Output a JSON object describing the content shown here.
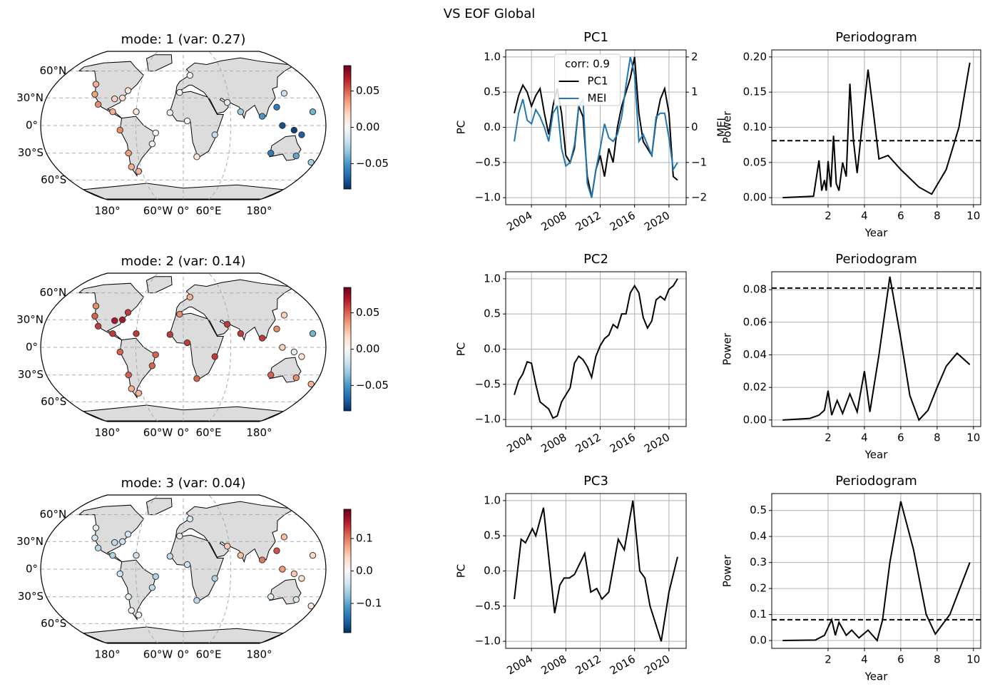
{
  "title": "VS EOF Global",
  "chart_data": [
    {
      "type": "map",
      "title": "mode: 1 (var: 0.27)",
      "lon": [
        -123,
        -118,
        -110,
        -90,
        -80,
        -72,
        -73,
        -65,
        -40,
        -35,
        -75,
        -80,
        -90,
        -60,
        -5,
        10,
        -17,
        5,
        18,
        40,
        57,
        73,
        100,
        120,
        125,
        140,
        150,
        115,
        150,
        175,
        165,
        135
      ],
      "lat": [
        45,
        34,
        23,
        15,
        -5,
        -30,
        -45,
        -50,
        -20,
        -8,
        38,
        30,
        29,
        15,
        36,
        55,
        14,
        5,
        -34,
        -10,
        25,
        15,
        10,
        20,
        0,
        -5,
        -10,
        -30,
        -33,
        -40,
        15,
        35
      ],
      "values": [
        0.03,
        0.035,
        0.04,
        0.03,
        0.04,
        0.035,
        0.03,
        0.03,
        0.005,
        0.0,
        0.01,
        0.015,
        0.02,
        0.01,
        0.0,
        -0.005,
        0.005,
        0.0,
        0.01,
        -0.02,
        -0.01,
        -0.03,
        -0.05,
        -0.06,
        -0.075,
        -0.08,
        -0.07,
        -0.06,
        -0.045,
        -0.03,
        -0.04,
        -0.02
      ],
      "vlim": [
        -0.085,
        0.085
      ],
      "cticks": [
        0.05,
        {
          "value": 0,
          "label": "0.00"
        },
        {
          "value": -0.05,
          "label": "−0.05"
        }
      ],
      "cmap": [
        "#053061",
        "#2166ac",
        "#4393c3",
        "#92c5de",
        "#d1e5f0",
        "#f7f7f7",
        "#fddbc7",
        "#f4a582",
        "#d6604d",
        "#b2182b",
        "#67001f"
      ],
      "yticks": [
        {
          "value": 60,
          "label": "60°N"
        },
        {
          "value": 30,
          "label": "30°N"
        },
        {
          "value": 0,
          "label": "0°"
        },
        {
          "value": -30,
          "label": "30°S"
        },
        {
          "value": -60,
          "label": "60°S"
        }
      ],
      "xticks": [
        {
          "value": -180,
          "label": "180°"
        },
        {
          "value": -60,
          "label": "60°W"
        },
        {
          "value": 0,
          "label": "0°"
        },
        {
          "value": 60,
          "label": "60°E"
        },
        {
          "value": 180,
          "label": "180°"
        }
      ],
      "grid": true
    },
    {
      "type": "line",
      "title": "PC1",
      "ylabel": "PC",
      "y2label": "MEI",
      "annotation": "corr: 0.9",
      "legend": "upper center",
      "x": [
        2002,
        2002.5,
        2003,
        2003.5,
        2004,
        2004.5,
        2005,
        2005.5,
        2006,
        2006.5,
        2007,
        2007.5,
        2008,
        2008.5,
        2009,
        2009.5,
        2010,
        2010.5,
        2011,
        2011.5,
        2012,
        2012.5,
        2013,
        2013.5,
        2014,
        2014.5,
        2015,
        2015.5,
        2016,
        2016.5,
        2017,
        2017.5,
        2018,
        2018.5,
        2019,
        2019.5,
        2020,
        2020.5,
        2021
      ],
      "series": [
        {
          "name": "PC1",
          "color": "#000000",
          "values": [
            0.2,
            0.45,
            0.6,
            0.5,
            0.3,
            0.45,
            0.55,
            0.2,
            -0.1,
            0.3,
            0.55,
            0.2,
            -0.4,
            -0.5,
            -0.3,
            0.3,
            0.15,
            -0.7,
            -1.0,
            -0.6,
            -0.4,
            -0.7,
            -0.3,
            -0.5,
            0.0,
            0.3,
            0.5,
            0.7,
            1.0,
            0.2,
            -0.2,
            -0.3,
            -0.4,
            0.1,
            0.4,
            0.55,
            0.2,
            -0.7,
            -0.75
          ]
        },
        {
          "name": "MEI",
          "color": "#1f77b4",
          "axis": "y2",
          "values": [
            -0.4,
            0.4,
            0.8,
            0.2,
            0.1,
            0.5,
            0.3,
            0.0,
            -0.4,
            0.4,
            0.6,
            -0.6,
            -1.1,
            -1.0,
            -0.5,
            0.6,
            0.8,
            -1.6,
            -2.0,
            -1.2,
            -0.6,
            0.1,
            -0.3,
            -0.4,
            -0.2,
            0.3,
            1.2,
            2.0,
            1.5,
            -0.4,
            -0.2,
            -0.5,
            -0.8,
            0.3,
            0.4,
            0.4,
            -0.3,
            -1.2,
            -1.0
          ]
        }
      ],
      "xlim": [
        2001,
        2022
      ],
      "xticks": [
        2004,
        2008,
        2012,
        2016,
        2020
      ],
      "xtick_rotation": 30,
      "ylim": [
        -1.1,
        1.1
      ],
      "yticks": [
        {
          "value": -1,
          "label": "−1.0"
        },
        {
          "value": -0.5,
          "label": "−0.5"
        },
        {
          "value": 0,
          "label": "0.0"
        },
        0.5,
        {
          "value": 1,
          "label": "1.0"
        }
      ],
      "y2lim": [
        -2.2,
        2.2
      ],
      "y2ticks": [
        {
          "value": -2,
          "label": "−2"
        },
        {
          "value": -1,
          "label": "−1"
        },
        0,
        1,
        2
      ],
      "grid": true
    },
    {
      "type": "line",
      "title": "Periodogram",
      "xlabel": "Year",
      "ylabel": "Power",
      "color": "#000000",
      "x": [
        -0.5,
        1.2,
        1.5,
        1.65,
        1.8,
        1.9,
        2.0,
        2.15,
        2.3,
        2.45,
        2.6,
        2.8,
        3.0,
        3.2,
        3.4,
        3.6,
        3.9,
        4.2,
        4.5,
        4.8,
        5.3,
        6.0,
        7.0,
        7.7,
        8.5,
        9.2,
        9.8
      ],
      "values": [
        0,
        0.002,
        0.053,
        0.01,
        0.025,
        0.01,
        0.052,
        0.015,
        0.088,
        0.02,
        0.01,
        0.05,
        0.03,
        0.162,
        0.08,
        0.035,
        0.11,
        0.182,
        0.12,
        0.055,
        0.06,
        0.04,
        0.015,
        0.005,
        0.04,
        0.1,
        0.192
      ],
      "hline": 0.081,
      "xlim": [
        -1.1,
        10.4
      ],
      "xticks": [
        2,
        4,
        6,
        8,
        10
      ],
      "ylim": [
        -0.01,
        0.21
      ],
      "yticks": [
        {
          "value": 0,
          "label": "0.00"
        },
        0.05,
        {
          "value": 0.1,
          "label": "0.10"
        },
        0.15,
        {
          "value": 0.2,
          "label": "0.20"
        }
      ],
      "grid": true
    },
    {
      "type": "map",
      "title": "mode: 2 (var: 0.14)",
      "lon": [
        -123,
        -118,
        -110,
        -90,
        -80,
        -72,
        -73,
        -65,
        -40,
        -35,
        -75,
        -80,
        -90,
        -60,
        -5,
        10,
        -17,
        5,
        18,
        40,
        57,
        73,
        100,
        120,
        125,
        140,
        150,
        115,
        150,
        175,
        165,
        135
      ],
      "lat": [
        45,
        34,
        23,
        15,
        -5,
        -30,
        -45,
        -50,
        -20,
        -8,
        38,
        30,
        29,
        15,
        36,
        55,
        14,
        5,
        -34,
        -10,
        25,
        15,
        10,
        20,
        0,
        -5,
        -10,
        -30,
        -33,
        -40,
        15,
        35
      ],
      "values": [
        0.04,
        0.05,
        0.06,
        0.06,
        0.05,
        0.05,
        0.03,
        0.03,
        0.05,
        0.05,
        0.06,
        0.07,
        0.07,
        0.06,
        0.04,
        0.03,
        0.06,
        0.06,
        0.05,
        0.06,
        0.06,
        0.06,
        0.06,
        0.04,
        0.02,
        -0.01,
        0.01,
        0.05,
        0.04,
        0.03,
        -0.04,
        0.02
      ],
      "vlim": [
        -0.085,
        0.085
      ],
      "cticks": [
        0.05,
        {
          "value": 0,
          "label": "0.00"
        },
        {
          "value": -0.05,
          "label": "−0.05"
        }
      ],
      "cmap": [
        "#053061",
        "#2166ac",
        "#4393c3",
        "#92c5de",
        "#d1e5f0",
        "#f7f7f7",
        "#fddbc7",
        "#f4a582",
        "#d6604d",
        "#b2182b",
        "#67001f"
      ],
      "yticks": [
        {
          "value": 60,
          "label": "60°N"
        },
        {
          "value": 30,
          "label": "30°N"
        },
        {
          "value": 0,
          "label": "0°"
        },
        {
          "value": -30,
          "label": "30°S"
        },
        {
          "value": -60,
          "label": "60°S"
        }
      ],
      "xticks": [
        {
          "value": -180,
          "label": "180°"
        },
        {
          "value": -60,
          "label": "60°W"
        },
        {
          "value": 0,
          "label": "0°"
        },
        {
          "value": 60,
          "label": "60°E"
        },
        {
          "value": 180,
          "label": "180°"
        }
      ],
      "grid": true
    },
    {
      "type": "line",
      "title": "PC2",
      "ylabel": "PC",
      "color": "#000000",
      "x": [
        2002,
        2002.5,
        2003,
        2003.5,
        2004,
        2004.5,
        2005,
        2005.5,
        2006,
        2006.5,
        2007,
        2007.5,
        2008,
        2008.5,
        2009,
        2009.5,
        2010,
        2010.5,
        2011,
        2011.5,
        2012,
        2012.5,
        2013,
        2013.5,
        2014,
        2014.5,
        2015,
        2015.5,
        2016,
        2016.5,
        2017,
        2017.5,
        2018,
        2018.5,
        2019,
        2019.5,
        2020,
        2020.5,
        2021
      ],
      "values": [
        -0.65,
        -0.45,
        -0.35,
        -0.18,
        -0.2,
        -0.5,
        -0.75,
        -0.8,
        -0.85,
        -0.98,
        -0.95,
        -0.75,
        -0.65,
        -0.55,
        -0.2,
        -0.1,
        -0.15,
        -0.25,
        -0.4,
        -0.1,
        0.05,
        0.15,
        0.2,
        0.35,
        0.3,
        0.5,
        0.5,
        0.8,
        0.9,
        0.8,
        0.45,
        0.3,
        0.4,
        0.7,
        0.75,
        0.7,
        0.85,
        0.9,
        1.0
      ],
      "xlim": [
        2001,
        2022
      ],
      "xticks": [
        2004,
        2008,
        2012,
        2016,
        2020
      ],
      "xtick_rotation": 30,
      "ylim": [
        -1.1,
        1.1
      ],
      "yticks": [
        {
          "value": -1,
          "label": "−1.0"
        },
        {
          "value": -0.5,
          "label": "−0.5"
        },
        {
          "value": 0,
          "label": "0.0"
        },
        0.5,
        {
          "value": 1,
          "label": "1.0"
        }
      ],
      "grid": true
    },
    {
      "type": "line",
      "title": "Periodogram",
      "xlabel": "Year",
      "ylabel": "Power",
      "color": "#000000",
      "x": [
        -0.5,
        1.0,
        1.5,
        1.8,
        2.0,
        2.2,
        2.5,
        2.8,
        3.2,
        3.6,
        4.0,
        4.3,
        4.8,
        5.4,
        6.0,
        6.5,
        7.0,
        7.5,
        8.0,
        8.5,
        9.1,
        9.8
      ],
      "values": [
        0,
        0.001,
        0.003,
        0.006,
        0.018,
        0.003,
        0.012,
        0.004,
        0.016,
        0.005,
        0.03,
        0.005,
        0.04,
        0.088,
        0.05,
        0.015,
        0.0,
        0.006,
        0.02,
        0.033,
        0.041,
        0.034
      ],
      "hline": 0.081,
      "xlim": [
        -1.1,
        10.4
      ],
      "xticks": [
        2,
        4,
        6,
        8,
        10
      ],
      "ylim": [
        -0.004,
        0.091
      ],
      "yticks": [
        {
          "value": 0,
          "label": "0.00"
        },
        0.02,
        0.04,
        0.06,
        0.08
      ],
      "grid": true
    },
    {
      "type": "map",
      "title": "mode: 3 (var: 0.04)",
      "lon": [
        -123,
        -118,
        -110,
        -90,
        -80,
        -72,
        -73,
        -65,
        -40,
        -35,
        -75,
        -80,
        -90,
        -60,
        -5,
        10,
        -17,
        5,
        18,
        40,
        57,
        73,
        100,
        120,
        125,
        140,
        150,
        115,
        150,
        175,
        165,
        135
      ],
      "lat": [
        45,
        34,
        23,
        15,
        -5,
        -30,
        -45,
        -50,
        -20,
        -8,
        38,
        30,
        29,
        15,
        36,
        55,
        14,
        5,
        -34,
        -10,
        25,
        15,
        10,
        20,
        0,
        -5,
        -10,
        -30,
        -33,
        -40,
        15,
        35
      ],
      "values": [
        -0.02,
        -0.03,
        -0.05,
        -0.06,
        -0.04,
        -0.02,
        0.0,
        0.01,
        -0.05,
        -0.06,
        -0.03,
        -0.04,
        -0.05,
        -0.04,
        -0.02,
        -0.03,
        -0.05,
        -0.04,
        -0.05,
        -0.06,
        0.05,
        0.06,
        0.1,
        0.12,
        0.08,
        0.05,
        0.03,
        -0.02,
        -0.03,
        0.02,
        0.04,
        0.06
      ],
      "vlim": [
        -0.19,
        0.19
      ],
      "cticks": [
        0.1,
        {
          "value": 0,
          "label": "0.0"
        },
        {
          "value": -0.1,
          "label": "−0.1"
        }
      ],
      "cmap": [
        "#053061",
        "#2166ac",
        "#4393c3",
        "#92c5de",
        "#d1e5f0",
        "#f7f7f7",
        "#fddbc7",
        "#f4a582",
        "#d6604d",
        "#b2182b",
        "#67001f"
      ],
      "yticks": [
        {
          "value": 60,
          "label": "60°N"
        },
        {
          "value": 30,
          "label": "30°N"
        },
        {
          "value": 0,
          "label": "0°"
        },
        {
          "value": -30,
          "label": "30°S"
        },
        {
          "value": -60,
          "label": "60°S"
        }
      ],
      "xticks": [
        {
          "value": -180,
          "label": "180°"
        },
        {
          "value": -60,
          "label": "60°W"
        },
        {
          "value": 0,
          "label": "0°"
        },
        {
          "value": 60,
          "label": "60°E"
        },
        {
          "value": 180,
          "label": "180°"
        }
      ],
      "grid": true
    },
    {
      "type": "line",
      "title": "PC3",
      "ylabel": "PC",
      "color": "#000000",
      "x": [
        2002,
        2002.8,
        2003.3,
        2004.1,
        2004.5,
        2005.4,
        2006,
        2006.7,
        2007.3,
        2007.8,
        2008.4,
        2009,
        2010.2,
        2010.9,
        2011.6,
        2012.2,
        2013,
        2014.1,
        2014.8,
        2015.8,
        2016.6,
        2017.2,
        2017.8,
        2019.1,
        2020,
        2021
      ],
      "values": [
        -0.4,
        0.45,
        0.4,
        0.6,
        0.5,
        0.9,
        0.2,
        -0.6,
        -0.2,
        -0.1,
        -0.1,
        -0.05,
        0.25,
        -0.3,
        -0.25,
        -0.4,
        -0.3,
        0.45,
        0.3,
        1.0,
        0.0,
        -0.1,
        -0.5,
        -1.0,
        -0.3,
        0.2
      ],
      "xlim": [
        2001,
        2022
      ],
      "xticks": [
        2004,
        2008,
        2012,
        2016,
        2020
      ],
      "xtick_rotation": 30,
      "ylim": [
        -1.1,
        1.1
      ],
      "yticks": [
        {
          "value": -1,
          "label": "−1.0"
        },
        {
          "value": -0.5,
          "label": "−0.5"
        },
        {
          "value": 0,
          "label": "0.0"
        },
        0.5,
        {
          "value": 1,
          "label": "1.0"
        }
      ],
      "grid": true
    },
    {
      "type": "line",
      "title": "Periodogram",
      "xlabel": "Year",
      "ylabel": "Power",
      "color": "#000000",
      "x": [
        -0.5,
        1.3,
        1.8,
        2.2,
        2.4,
        2.6,
        3.0,
        3.3,
        3.7,
        4.2,
        4.7,
        5.0,
        5.4,
        6.0,
        6.7,
        7.4,
        7.9,
        8.7,
        9.8
      ],
      "values": [
        0,
        0.002,
        0.02,
        0.08,
        0.02,
        0.07,
        0.02,
        0.04,
        0.01,
        0.04,
        0.0,
        0.08,
        0.3,
        0.535,
        0.35,
        0.1,
        0.025,
        0.1,
        0.3
      ],
      "hline": 0.08,
      "xlim": [
        -1.1,
        10.4
      ],
      "xticks": [
        2,
        4,
        6,
        8,
        10
      ],
      "ylim": [
        -0.03,
        0.565
      ],
      "yticks": [
        {
          "value": 0,
          "label": "0.0"
        },
        0.1,
        0.2,
        0.3,
        0.4,
        0.5
      ],
      "grid": true
    }
  ]
}
